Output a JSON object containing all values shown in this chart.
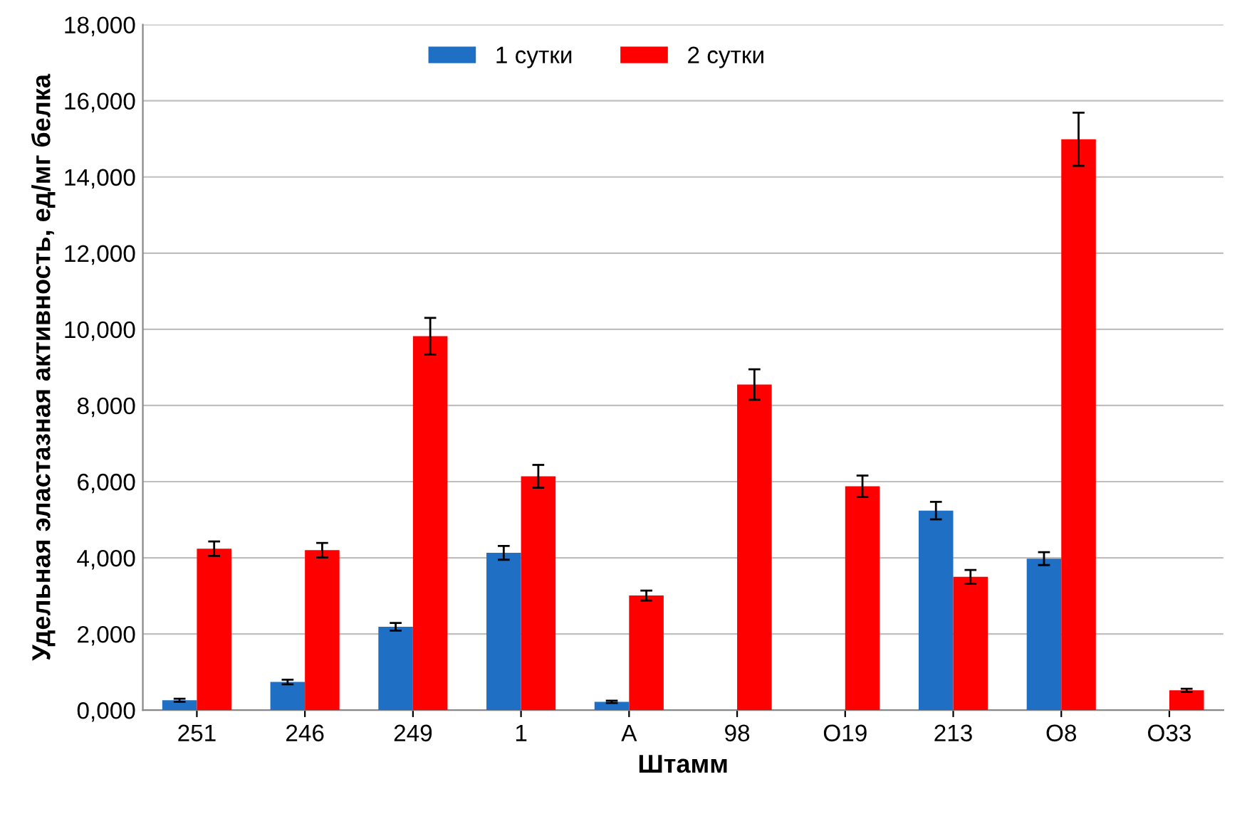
{
  "chart_data": {
    "type": "bar",
    "xlabel": "Штамм",
    "ylabel": "Удельная эластазная активность, ед/мг белка",
    "categories": [
      "251",
      "246",
      "249",
      "1",
      "A",
      "98",
      "O19",
      "213",
      "O8",
      "O33"
    ],
    "series": [
      {
        "name": "1 сутки",
        "color": "#1f6fc5",
        "values": [
          260,
          740,
          2190,
          4130,
          220,
          null,
          null,
          5240,
          3980,
          null
        ],
        "errors": [
          40,
          60,
          100,
          180,
          30,
          null,
          null,
          230,
          170,
          null
        ]
      },
      {
        "name": "2 сутки",
        "color": "#ff0000",
        "values": [
          4240,
          4200,
          9820,
          6140,
          3010,
          8550,
          5880,
          3500,
          14990,
          520
        ],
        "errors": [
          190,
          190,
          480,
          300,
          130,
          400,
          280,
          180,
          700,
          40
        ]
      }
    ],
    "ylim": [
      0,
      18000
    ],
    "yticks": [
      {
        "value": 0,
        "label": "0,000"
      },
      {
        "value": 2000,
        "label": "2,000"
      },
      {
        "value": 4000,
        "label": "4,000"
      },
      {
        "value": 6000,
        "label": "6,000"
      },
      {
        "value": 8000,
        "label": "8,000"
      },
      {
        "value": 10000,
        "label": "10,000"
      },
      {
        "value": 12000,
        "label": "12,000"
      },
      {
        "value": 14000,
        "label": "14,000"
      },
      {
        "value": 16000,
        "label": "16,000"
      },
      {
        "value": 18000,
        "label": "18,000"
      }
    ],
    "grid": "y",
    "legend": "top"
  }
}
